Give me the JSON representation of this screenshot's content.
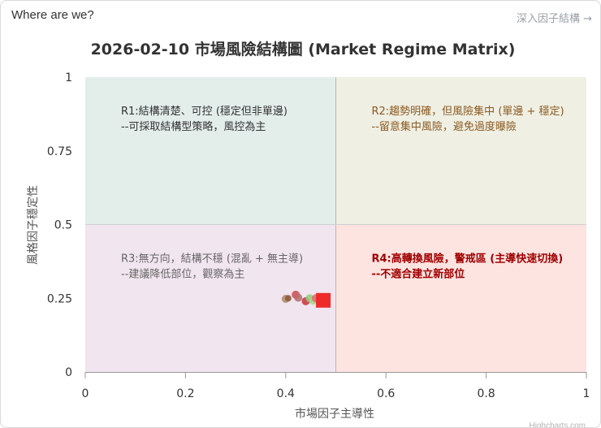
{
  "card": {
    "title": "Where are we?",
    "link_label": "深入因子結構 →"
  },
  "chart_data": {
    "type": "scatter",
    "title": "2026-02-10 市場風險結構圖 (Market Regime Matrix)",
    "xlabel": "市場因子主導性",
    "ylabel": "風格因子穩定性",
    "xlim": [
      0,
      1
    ],
    "ylim": [
      0,
      1
    ],
    "x_ticks": [
      "0",
      "0.2",
      "0.4",
      "0.6",
      "0.8",
      "1"
    ],
    "y_ticks": [
      "0",
      "0.25",
      "0.5",
      "0.75",
      "1"
    ],
    "grid": false,
    "quadrants": [
      {
        "id": "R1",
        "x": [
          0,
          0.5
        ],
        "y": [
          0.5,
          1
        ],
        "fill": "#e3eeeb",
        "line1": "R1:結構清楚、可控 (穩定但非單邊)",
        "line2": "--可採取結構型策略，風控為主",
        "color": "#333333",
        "bold": false
      },
      {
        "id": "R2",
        "x": [
          0.5,
          1
        ],
        "y": [
          0.5,
          1
        ],
        "fill": "#efefe3",
        "line1": "R2:趨勢明確，但風險集中 (單邊 + 穩定)",
        "line2": "--留意集中風險，避免過度曝險",
        "color": "#8a5a22",
        "bold": false
      },
      {
        "id": "R3",
        "x": [
          0,
          0.5
        ],
        "y": [
          0,
          0.5
        ],
        "fill": "#f1e5ef",
        "line1": "R3:無方向，結構不穩 (混亂 + 無主導)",
        "line2": "--建議降低部位，觀察為主",
        "color": "#666666",
        "bold": false
      },
      {
        "id": "R4",
        "x": [
          0.5,
          1
        ],
        "y": [
          0,
          0.5
        ],
        "fill": "#fde4e1",
        "line1": "R4:高轉換風險，警戒區 (主導快速切換)",
        "line2": "--不適合建立新部位",
        "color": "#a00000",
        "bold": true
      }
    ],
    "points": [
      {
        "x": 0.4,
        "y": 0.248,
        "color": "#b08868",
        "size": 5
      },
      {
        "x": 0.405,
        "y": 0.25,
        "color": "#8a5a3a",
        "size": 4
      },
      {
        "x": 0.42,
        "y": 0.262,
        "color": "#d04a55",
        "size": 5
      },
      {
        "x": 0.425,
        "y": 0.252,
        "color": "#b86b6b",
        "size": 5
      },
      {
        "x": 0.44,
        "y": 0.24,
        "color": "#c8343c",
        "size": 5
      },
      {
        "x": 0.448,
        "y": 0.25,
        "color": "#8fcf7c",
        "size": 5
      },
      {
        "x": 0.455,
        "y": 0.242,
        "color": "#a8d68c",
        "size": 5
      },
      {
        "x": 0.46,
        "y": 0.25,
        "color": "#e06870",
        "size": 5
      }
    ],
    "current": {
      "x": 0.475,
      "y": 0.243,
      "color": "#ee2a2a",
      "shape": "square"
    },
    "credits": "Highcharts.com"
  }
}
